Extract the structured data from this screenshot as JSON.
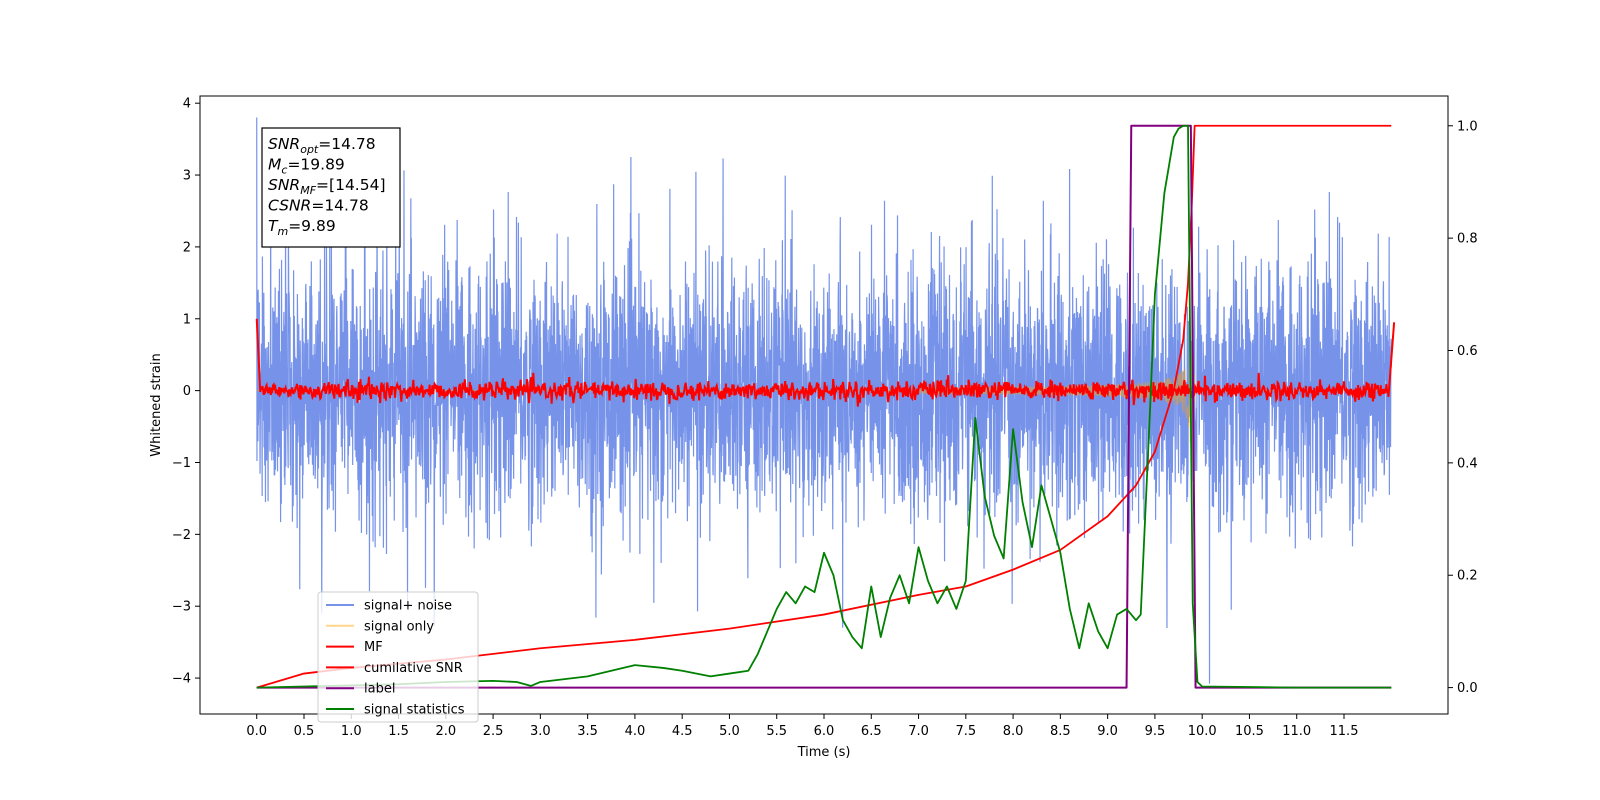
{
  "chart_data": {
    "type": "line",
    "xlabel": "Time (s)",
    "ylabel": "Whitened strain",
    "xlim": [
      -0.6,
      12.6
    ],
    "ylim": [
      -4.5,
      4.1
    ],
    "y2lim": [
      -0.047,
      1.053
    ],
    "xticks": [
      "0.0",
      "0.5",
      "1.0",
      "1.5",
      "2.0",
      "2.5",
      "3.0",
      "3.5",
      "4.0",
      "4.5",
      "5.0",
      "5.5",
      "6.0",
      "6.5",
      "7.0",
      "7.5",
      "8.0",
      "8.5",
      "9.0",
      "9.5",
      "10.0",
      "10.5",
      "11.0",
      "11.5"
    ],
    "yticks": [
      "4",
      "3",
      "2",
      "1",
      "0",
      "−1",
      "−2",
      "−3",
      "−4"
    ],
    "y2ticks": [
      "1.0",
      "0.8",
      "0.6",
      "0.4",
      "0.2",
      "0.0"
    ],
    "legend_position": "lower-left",
    "annotation": [
      {
        "sym": "SNR",
        "sub": "opt",
        "val": "=14.78"
      },
      {
        "sym": "M",
        "sub": "c",
        "val": "=19.89"
      },
      {
        "sym": "SNR",
        "sub": "MF",
        "val": "=[14.54]"
      },
      {
        "sym": "CSNR",
        "sub": "",
        "val": "=14.78"
      },
      {
        "sym": "T",
        "sub": "m",
        "val": "=9.89"
      }
    ],
    "series": [
      {
        "name": "signal+ noise",
        "color": "#4169e1",
        "axis": "left",
        "kind": "noise",
        "envelope": 2.0,
        "peak": 3.8
      },
      {
        "name": "signal only",
        "color": "#ffa500",
        "axis": "left",
        "kind": "chirp",
        "merger_time": 9.89
      },
      {
        "name": "MF",
        "color": "#ff0000",
        "axis": "left",
        "kind": "mf",
        "x": [
          0.0,
          0.03,
          0.1,
          12.0,
          12.03
        ],
        "y": [
          1.0,
          0.0,
          0.0,
          0.0,
          0.95
        ]
      },
      {
        "name": "cumilative SNR",
        "color": "#ff0000",
        "axis": "right",
        "x": [
          0.0,
          0.5,
          1.0,
          2.0,
          3.0,
          4.0,
          5.0,
          6.0,
          7.0,
          7.5,
          8.0,
          8.5,
          9.0,
          9.3,
          9.5,
          9.7,
          9.8,
          9.85,
          9.89,
          9.92,
          12.0
        ],
        "y": [
          0.0,
          0.025,
          0.035,
          0.05,
          0.07,
          0.085,
          0.105,
          0.13,
          0.165,
          0.18,
          0.21,
          0.245,
          0.305,
          0.36,
          0.42,
          0.53,
          0.62,
          0.72,
          0.86,
          1.0,
          1.0
        ]
      },
      {
        "name": "label",
        "color": "#800080",
        "axis": "right",
        "x": [
          0.0,
          9.2,
          9.25,
          9.88,
          9.93,
          12.0
        ],
        "y": [
          0.0,
          0.0,
          1.0,
          1.0,
          0.0,
          0.0
        ]
      },
      {
        "name": "signal statistics",
        "color": "#008000",
        "axis": "right",
        "x": [
          0.0,
          0.5,
          1.0,
          1.5,
          2.0,
          2.5,
          2.75,
          2.9,
          3.0,
          3.5,
          4.0,
          4.3,
          4.5,
          4.8,
          5.0,
          5.2,
          5.3,
          5.5,
          5.6,
          5.7,
          5.8,
          5.9,
          6.0,
          6.1,
          6.2,
          6.3,
          6.4,
          6.5,
          6.6,
          6.7,
          6.8,
          6.9,
          7.0,
          7.1,
          7.2,
          7.3,
          7.4,
          7.5,
          7.6,
          7.7,
          7.8,
          7.9,
          8.0,
          8.1,
          8.2,
          8.3,
          8.4,
          8.5,
          8.6,
          8.7,
          8.8,
          8.9,
          9.0,
          9.1,
          9.2,
          9.3,
          9.35,
          9.45,
          9.5,
          9.6,
          9.7,
          9.75,
          9.8,
          9.85,
          9.9,
          9.95,
          10.0,
          10.5,
          11.0,
          11.5,
          12.0
        ],
        "y": [
          0.0,
          0.002,
          0.004,
          0.006,
          0.01,
          0.012,
          0.01,
          0.003,
          0.01,
          0.02,
          0.04,
          0.035,
          0.03,
          0.02,
          0.025,
          0.03,
          0.06,
          0.14,
          0.17,
          0.15,
          0.18,
          0.17,
          0.24,
          0.2,
          0.12,
          0.09,
          0.07,
          0.18,
          0.09,
          0.16,
          0.2,
          0.15,
          0.25,
          0.19,
          0.15,
          0.18,
          0.14,
          0.19,
          0.48,
          0.34,
          0.27,
          0.23,
          0.46,
          0.33,
          0.25,
          0.36,
          0.3,
          0.24,
          0.14,
          0.07,
          0.15,
          0.1,
          0.07,
          0.13,
          0.14,
          0.12,
          0.13,
          0.5,
          0.7,
          0.88,
          0.98,
          0.995,
          1.0,
          1.0,
          0.15,
          0.01,
          0.002,
          0.001,
          0.0,
          0.0,
          0.0
        ]
      }
    ]
  }
}
